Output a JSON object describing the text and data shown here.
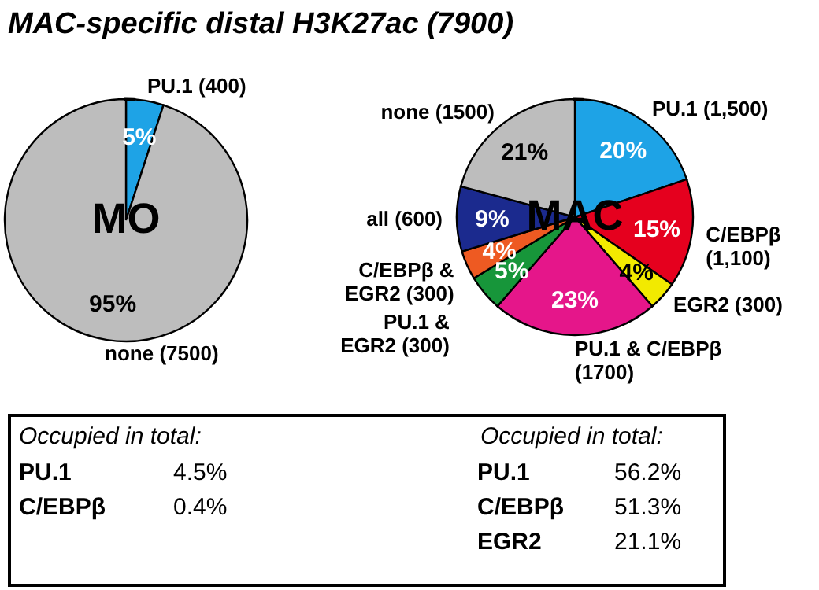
{
  "chart_data": [
    {
      "type": "pie",
      "title": "MAC-specific distal H3K27ac (7900)",
      "subtitle": "MO",
      "categories": [
        "PU.1 (400)",
        "none (7500)"
      ],
      "values": [
        5,
        95
      ],
      "colors": [
        "#1ea3e6",
        "#bdbdbd"
      ],
      "value_labels": [
        "5%",
        "95%"
      ],
      "annotations": [
        "Occupied in total:",
        "PU.1",
        "4.5%",
        "C/EBPβ",
        "0.4%"
      ]
    },
    {
      "type": "pie",
      "subtitle": "MAC",
      "categories": [
        "PU.1 (1,500)",
        "C/EBPβ (1,100)",
        "EGR2 (300)",
        "PU.1 & C/EBPβ (1700)",
        "PU.1 & EGR2 (300)",
        "C/EBPβ & EGR2 (300)",
        "all (600)",
        "none (1500)"
      ],
      "values": [
        20,
        15,
        4,
        23,
        5,
        4,
        9,
        21
      ],
      "colors": [
        "#1ea3e6",
        "#e5001e",
        "#f2ea00",
        "#e5168a",
        "#17963a",
        "#ee5a22",
        "#1b2a8e",
        "#bdbdbd"
      ],
      "value_labels": [
        "20%",
        "15%",
        "4%",
        "23%",
        "5%",
        "4%",
        "9%",
        "21%"
      ],
      "annotations": [
        "Occupied in total:",
        "PU.1",
        "56.2%",
        "C/EBPβ",
        "51.3%",
        "EGR2",
        "21.1%"
      ]
    }
  ]
}
